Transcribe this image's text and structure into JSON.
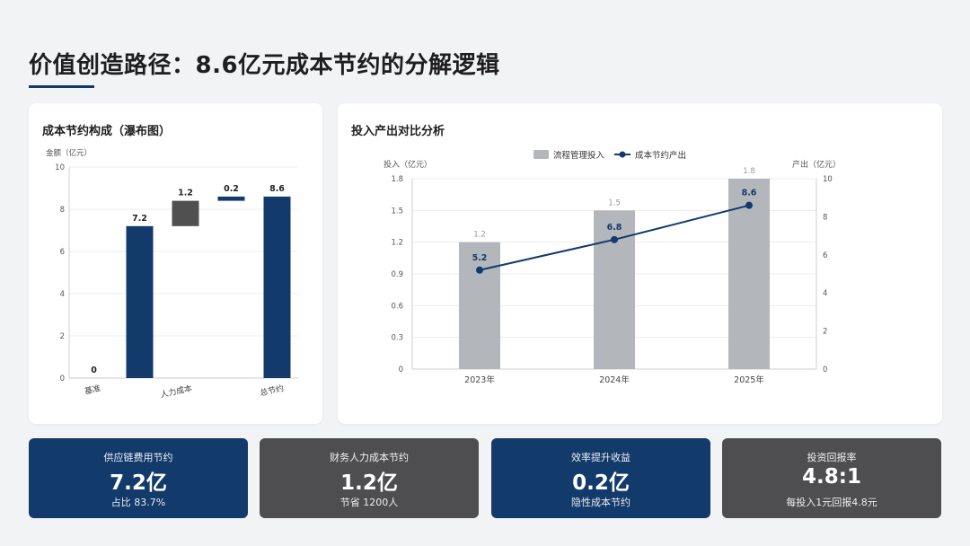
{
  "header": {
    "title": "价值创造路径：8.6亿元成本节约的分解逻辑"
  },
  "waterfall_panel": {
    "title": "成本节约构成（瀑布图）"
  },
  "combo_panel": {
    "title": "投入产出对比分析"
  },
  "chart_data": [
    {
      "type": "bar",
      "subtype": "waterfall",
      "ylabel": "金额（亿元）",
      "ylim": [
        0,
        10
      ],
      "yticks": [
        0,
        2,
        4,
        6,
        8,
        10
      ],
      "xtick_labels": [
        "基准",
        "人力成本",
        "总节约"
      ],
      "steps": [
        {
          "label": "0",
          "base": 0,
          "value": 0,
          "kind": "total",
          "color": "#123a6b"
        },
        {
          "label": "7.2",
          "base": 0,
          "value": 7.2,
          "kind": "increment",
          "color": "#123a6b"
        },
        {
          "label": "1.2",
          "base": 7.2,
          "value": 1.2,
          "kind": "increment",
          "color": "#505050"
        },
        {
          "label": "0.2",
          "base": 8.4,
          "value": 0.2,
          "kind": "increment",
          "color": "#123a6b"
        },
        {
          "label": "8.6",
          "base": 0,
          "value": 8.6,
          "kind": "total",
          "color": "#123a6b"
        }
      ],
      "grid": true
    },
    {
      "type": "bar",
      "subtype": "bar-line-combo",
      "categories": [
        "2023年",
        "2024年",
        "2025年"
      ],
      "left_axis": {
        "label": "投入（亿元）",
        "ylim": [
          0,
          1.8
        ],
        "ticks": [
          "0",
          "0.3",
          "0.6",
          "0.9",
          "1.2",
          "1.5",
          "1.8"
        ]
      },
      "right_axis": {
        "label": "产出（亿元）",
        "ylim": [
          0,
          10
        ],
        "ticks": [
          "0",
          "2",
          "4",
          "6",
          "8",
          "10"
        ]
      },
      "series": [
        {
          "name": "流程管理投入",
          "type": "bar",
          "axis": "left",
          "values": [
            1.2,
            1.5,
            1.8
          ],
          "labels": [
            "1.2",
            "1.5",
            "1.8"
          ],
          "color": "#b3b7bb"
        },
        {
          "name": "成本节约产出",
          "type": "line",
          "axis": "right",
          "values": [
            5.2,
            6.8,
            8.6
          ],
          "labels": [
            "5.2",
            "6.8",
            "8.6"
          ],
          "color": "#123a6b"
        }
      ],
      "legend": "top-center",
      "grid": true
    }
  ],
  "cards": [
    {
      "label": "供应链费用节约",
      "value": "7.2亿",
      "sub": "占比 83.7%",
      "color": "#123a6b"
    },
    {
      "label": "财务人力成本节约",
      "value": "1.2亿",
      "sub": "节省 1200人",
      "color": "#4e4e50"
    },
    {
      "label": "效率提升收益",
      "value": "0.2亿",
      "sub": "隐性成本节约",
      "color": "#123a6b"
    },
    {
      "label": "投资回报率",
      "value": "4.8:1",
      "sub": "每投入1元回报4.8元",
      "color": "#4e4e50"
    }
  ]
}
